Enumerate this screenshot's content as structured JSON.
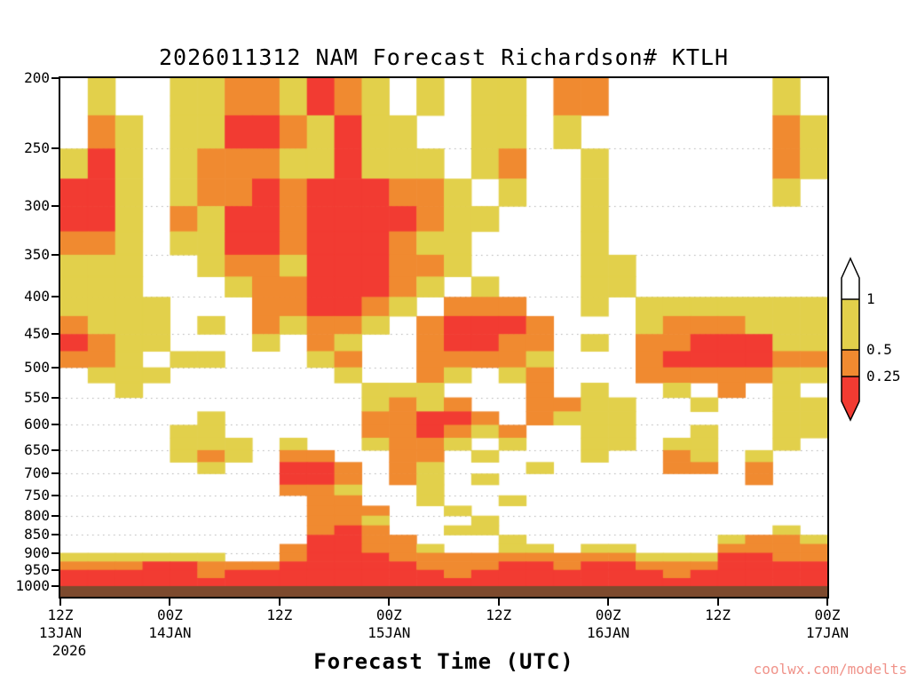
{
  "title": "2026011312 NAM Forecast Richardson# KTLH",
  "watermark": "coolwx.com/modelts",
  "colorbar": {
    "labels": [
      "1",
      "0.5",
      "0.25"
    ],
    "segment_colors": [
      "#ffffff",
      "#e2d04b",
      "#f08a30",
      "#f23b32"
    ]
  },
  "chart_data": {
    "type": "heatmap",
    "title": "2026011312 NAM Forecast Richardson# KTLH",
    "xlabel": "Forecast Time (UTC)",
    "ylabel": "",
    "y_scale": "log",
    "pressure_range": [
      200,
      1000
    ],
    "hours_range": [
      0,
      84
    ],
    "y_ticks": [
      200,
      250,
      300,
      350,
      400,
      450,
      500,
      550,
      600,
      650,
      700,
      750,
      800,
      850,
      900,
      950,
      1000
    ],
    "x_ticks": [
      {
        "hour": 0,
        "label": "12Z",
        "date": "13JAN",
        "year": "2026"
      },
      {
        "hour": 12,
        "label": "00Z",
        "date": "14JAN"
      },
      {
        "hour": 24,
        "label": "12Z"
      },
      {
        "hour": 36,
        "label": "00Z",
        "date": "15JAN"
      },
      {
        "hour": 48,
        "label": "12Z"
      },
      {
        "hour": 60,
        "label": "00Z",
        "date": "16JAN"
      },
      {
        "hour": 72,
        "label": "12Z"
      },
      {
        "hour": 84,
        "label": "00Z",
        "date": "17JAN"
      }
    ],
    "gridlines": [
      250,
      300,
      350,
      400,
      450,
      500,
      550,
      600,
      650,
      700,
      750,
      800,
      850,
      900
    ],
    "legend_thresholds": [
      1,
      0.5,
      0.25
    ],
    "palette": {
      "0": "#ffffff",
      "1": "#e2d04b",
      "2": "#f08a30",
      "3": "#f23b32"
    },
    "terrain_color": "#7d4a2e",
    "grid_hours_step": 3,
    "grid_pressure_step": 25,
    "grid": [
      "0100112213210101102200000010",
      "0210113321311001101000000021",
      "1310122211311101200100000021",
      "3310122323332210100100000010",
      "3310213323333211000100000000",
      "2210113323332110000100000000",
      "1110012213332210000110000000",
      "1110001223332101000110000000",
      "1111000223321022200101111111",
      "2111010212210233320001222111",
      "3211000102100233220102233311",
      "2210110001200222210002333322",
      "0111000000100210120002222211",
      "0010000000011100020100102010",
      "0000000000012120022110010011",
      "0000010000022332021110000011",
      "0000110000022321200110010011",
      "0000111010012210100110110010",
      "0000121022002201000100210100",
      "0000010033202100010000220200",
      "0000000033202101000000000200",
      "0000000022100100000000000000",
      "0000000002200100100000000000",
      "0000000002220010000000000000",
      "0000000002210001000000000000",
      "0000000002320011000000000010",
      "0000000003322000100000001221",
      "0000000023322100110110002222",
      "1111110023332222222221113322",
      "2223322233333222332332223333",
      "3333323333333323333333233333",
      "3333333333333333333333333333"
    ]
  }
}
